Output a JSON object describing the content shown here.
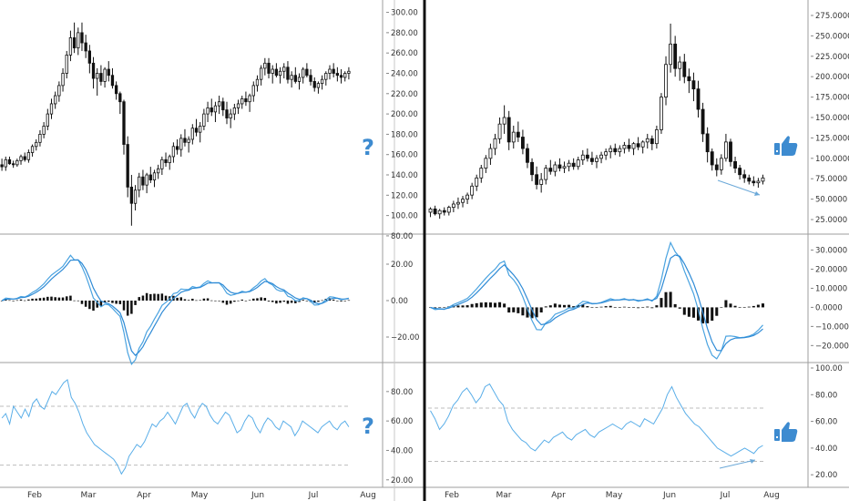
{
  "chart_data": [
    {
      "type": "candlestick",
      "panel": "left-price",
      "ylim": [
        88,
        305
      ],
      "yticks": [
        "300.00",
        "280.00",
        "260.00",
        "240.00",
        "220.00",
        "200.00",
        "180.00",
        "160.00",
        "140.00",
        "120.00",
        "100.00",
        "80.00"
      ],
      "annotation": "?",
      "candles": [
        [
          150,
          156,
          144,
          148
        ],
        [
          148,
          158,
          144,
          155
        ],
        [
          155,
          158,
          150,
          151
        ],
        [
          151,
          154,
          147,
          150
        ],
        [
          150,
          156,
          148,
          154
        ],
        [
          154,
          160,
          150,
          158
        ],
        [
          158,
          162,
          153,
          155
        ],
        [
          155,
          165,
          152,
          162
        ],
        [
          162,
          170,
          158,
          168
        ],
        [
          168,
          175,
          164,
          172
        ],
        [
          172,
          184,
          168,
          180
        ],
        [
          180,
          192,
          176,
          188
        ],
        [
          188,
          205,
          184,
          200
        ],
        [
          200,
          215,
          195,
          210
        ],
        [
          210,
          222,
          205,
          218
        ],
        [
          218,
          232,
          212,
          228
        ],
        [
          228,
          245,
          222,
          240
        ],
        [
          240,
          262,
          235,
          258
        ],
        [
          258,
          282,
          252,
          275
        ],
        [
          275,
          290,
          260,
          265
        ],
        [
          265,
          285,
          258,
          280
        ],
        [
          280,
          290,
          262,
          270
        ],
        [
          270,
          278,
          255,
          262
        ],
        [
          262,
          268,
          240,
          250
        ],
        [
          250,
          256,
          225,
          235
        ],
        [
          235,
          245,
          218,
          240
        ],
        [
          240,
          248,
          228,
          232
        ],
        [
          232,
          246,
          226,
          244
        ],
        [
          244,
          252,
          232,
          238
        ],
        [
          238,
          245,
          225,
          228
        ],
        [
          228,
          232,
          214,
          220
        ],
        [
          220,
          222,
          200,
          212
        ],
        [
          212,
          214,
          160,
          170
        ],
        [
          170,
          178,
          118,
          128
        ],
        [
          128,
          140,
          90,
          112
        ],
        [
          112,
          130,
          105,
          125
        ],
        [
          125,
          142,
          118,
          138
        ],
        [
          138,
          145,
          125,
          130
        ],
        [
          130,
          142,
          122,
          140
        ],
        [
          140,
          148,
          132,
          135
        ],
        [
          135,
          145,
          128,
          142
        ],
        [
          142,
          150,
          136,
          146
        ],
        [
          146,
          158,
          140,
          155
        ],
        [
          155,
          162,
          148,
          152
        ],
        [
          152,
          160,
          145,
          158
        ],
        [
          158,
          172,
          152,
          168
        ],
        [
          168,
          175,
          160,
          165
        ],
        [
          165,
          180,
          158,
          176
        ],
        [
          176,
          185,
          168,
          172
        ],
        [
          172,
          178,
          162,
          175
        ],
        [
          175,
          190,
          170,
          186
        ],
        [
          186,
          195,
          178,
          182
        ],
        [
          182,
          192,
          172,
          188
        ],
        [
          188,
          205,
          184,
          200
        ],
        [
          200,
          212,
          192,
          206
        ],
        [
          206,
          215,
          198,
          202
        ],
        [
          202,
          212,
          192,
          208
        ],
        [
          208,
          218,
          200,
          212
        ],
        [
          212,
          216,
          198,
          204
        ],
        [
          204,
          212,
          190,
          196
        ],
        [
          196,
          205,
          186,
          200
        ],
        [
          200,
          210,
          194,
          206
        ],
        [
          206,
          214,
          200,
          210
        ],
        [
          210,
          218,
          205,
          215
        ],
        [
          215,
          222,
          208,
          212
        ],
        [
          212,
          220,
          202,
          218
        ],
        [
          218,
          232,
          212,
          228
        ],
        [
          228,
          238,
          222,
          234
        ],
        [
          234,
          248,
          228,
          245
        ],
        [
          245,
          255,
          238,
          250
        ],
        [
          250,
          255,
          235,
          240
        ],
        [
          240,
          248,
          230,
          244
        ],
        [
          244,
          250,
          236,
          238
        ],
        [
          238,
          246,
          230,
          242
        ],
        [
          242,
          250,
          235,
          246
        ],
        [
          246,
          252,
          230,
          234
        ],
        [
          234,
          242,
          226,
          238
        ],
        [
          238,
          246,
          230,
          232
        ],
        [
          232,
          240,
          224,
          236
        ],
        [
          236,
          246,
          230,
          244
        ],
        [
          244,
          250,
          236,
          238
        ],
        [
          238,
          244,
          228,
          232
        ],
        [
          232,
          236,
          222,
          226
        ],
        [
          226,
          232,
          220,
          230
        ],
        [
          230,
          238,
          224,
          234
        ],
        [
          234,
          242,
          228,
          240
        ],
        [
          240,
          248,
          234,
          244
        ],
        [
          244,
          250,
          236,
          240
        ],
        [
          240,
          246,
          232,
          238
        ],
        [
          238,
          244,
          230,
          236
        ],
        [
          236,
          242,
          232,
          240
        ],
        [
          240,
          246,
          234,
          242
        ]
      ]
    },
    {
      "type": "candlestick",
      "panel": "right-price",
      "ylim": [
        15,
        285
      ],
      "yticks": [
        "275.0000",
        "250.0000",
        "225.0000",
        "200.0000",
        "175.0000",
        "150.0000",
        "125.0000",
        "100.0000",
        "75.0000",
        "50.0000",
        "25.0000"
      ],
      "annotation": "thumbs-up",
      "candles": [
        [
          34,
          40,
          28,
          38
        ],
        [
          38,
          42,
          30,
          32
        ],
        [
          32,
          38,
          26,
          36
        ],
        [
          36,
          40,
          30,
          34
        ],
        [
          34,
          42,
          30,
          40
        ],
        [
          40,
          48,
          34,
          44
        ],
        [
          44,
          52,
          38,
          46
        ],
        [
          46,
          54,
          40,
          50
        ],
        [
          50,
          58,
          44,
          55
        ],
        [
          55,
          70,
          50,
          66
        ],
        [
          66,
          80,
          60,
          76
        ],
        [
          76,
          92,
          70,
          88
        ],
        [
          88,
          104,
          82,
          100
        ],
        [
          100,
          118,
          92,
          112
        ],
        [
          112,
          130,
          104,
          124
        ],
        [
          124,
          150,
          118,
          142
        ],
        [
          142,
          165,
          130,
          150
        ],
        [
          150,
          158,
          110,
          120
        ],
        [
          120,
          140,
          112,
          132
        ],
        [
          132,
          145,
          120,
          126
        ],
        [
          126,
          135,
          105,
          112
        ],
        [
          112,
          118,
          88,
          95
        ],
        [
          95,
          100,
          72,
          80
        ],
        [
          80,
          90,
          62,
          68
        ],
        [
          68,
          82,
          58,
          74
        ],
        [
          74,
          92,
          68,
          88
        ],
        [
          88,
          98,
          80,
          84
        ],
        [
          84,
          96,
          78,
          92
        ],
        [
          92,
          100,
          84,
          88
        ],
        [
          88,
          96,
          82,
          90
        ],
        [
          90,
          98,
          84,
          94
        ],
        [
          94,
          100,
          86,
          90
        ],
        [
          90,
          102,
          86,
          98
        ],
        [
          98,
          110,
          92,
          104
        ],
        [
          104,
          112,
          96,
          100
        ],
        [
          100,
          108,
          92,
          96
        ],
        [
          96,
          104,
          88,
          100
        ],
        [
          100,
          108,
          94,
          104
        ],
        [
          104,
          112,
          98,
          108
        ],
        [
          108,
          116,
          100,
          112
        ],
        [
          112,
          118,
          104,
          108
        ],
        [
          108,
          116,
          102,
          112
        ],
        [
          112,
          120,
          106,
          116
        ],
        [
          116,
          124,
          108,
          112
        ],
        [
          112,
          120,
          104,
          118
        ],
        [
          118,
          126,
          110,
          114
        ],
        [
          114,
          122,
          106,
          120
        ],
        [
          120,
          130,
          112,
          124
        ],
        [
          124,
          128,
          110,
          118
        ],
        [
          118,
          140,
          112,
          135
        ],
        [
          135,
          180,
          130,
          175
        ],
        [
          175,
          225,
          165,
          215
        ],
        [
          215,
          265,
          205,
          240
        ],
        [
          240,
          250,
          200,
          210
        ],
        [
          210,
          225,
          195,
          218
        ],
        [
          218,
          228,
          192,
          200
        ],
        [
          200,
          210,
          180,
          195
        ],
        [
          195,
          205,
          170,
          185
        ],
        [
          185,
          195,
          150,
          160
        ],
        [
          160,
          168,
          120,
          130
        ],
        [
          130,
          138,
          95,
          108
        ],
        [
          108,
          112,
          85,
          92
        ],
        [
          92,
          100,
          78,
          86
        ],
        [
          86,
          105,
          80,
          100
        ],
        [
          100,
          130,
          96,
          120
        ],
        [
          120,
          124,
          90,
          96
        ],
        [
          96,
          102,
          82,
          88
        ],
        [
          88,
          92,
          74,
          80
        ],
        [
          80,
          86,
          70,
          76
        ],
        [
          76,
          80,
          68,
          72
        ],
        [
          72,
          78,
          66,
          70
        ],
        [
          70,
          76,
          64,
          72
        ],
        [
          72,
          80,
          68,
          76
        ]
      ]
    },
    {
      "type": "line+bar",
      "panel": "left-macd",
      "ylim": [
        -32,
        34
      ],
      "yticks": [
        "20.00",
        "0.00",
        "−20.00"
      ]
    },
    {
      "type": "line+bar",
      "panel": "right-macd",
      "ylim": [
        -27,
        36
      ],
      "yticks": [
        "30.0000",
        "20.0000",
        "10.0000",
        "0.0000",
        "−10.0000",
        "−20.0000"
      ]
    },
    {
      "type": "line",
      "panel": "left-rsi",
      "ylim": [
        18,
        96
      ],
      "yticks": [
        "80.00",
        "60.00",
        "40.00",
        "20.00"
      ],
      "annotation": "?",
      "levels": [
        70,
        30
      ],
      "values": [
        62,
        65,
        58,
        70,
        66,
        62,
        68,
        63,
        72,
        75,
        70,
        68,
        74,
        80,
        78,
        82,
        86,
        88,
        76,
        72,
        66,
        58,
        52,
        48,
        44,
        42,
        40,
        38,
        36,
        34,
        30,
        24,
        28,
        36,
        40,
        44,
        42,
        46,
        52,
        58,
        56,
        60,
        62,
        66,
        62,
        58,
        64,
        70,
        72,
        66,
        62,
        68,
        72,
        70,
        64,
        60,
        58,
        62,
        66,
        64,
        58,
        52,
        54,
        60,
        64,
        62,
        56,
        52,
        58,
        62,
        60,
        56,
        54,
        60,
        58,
        56,
        50,
        54,
        60,
        58,
        56,
        54,
        52,
        56,
        58,
        60,
        56,
        54,
        58,
        60,
        56
      ]
    },
    {
      "type": "line",
      "panel": "right-rsi",
      "ylim": [
        14,
        100
      ],
      "yticks": [
        "100.00",
        "80.00",
        "60.00",
        "40.00",
        "20.00"
      ],
      "annotation": "thumbs-up",
      "levels": [
        70,
        30
      ],
      "values": [
        68,
        62,
        54,
        58,
        64,
        72,
        76,
        82,
        85,
        80,
        74,
        78,
        86,
        88,
        82,
        76,
        72,
        60,
        54,
        50,
        46,
        44,
        40,
        38,
        42,
        46,
        44,
        48,
        50,
        52,
        48,
        46,
        50,
        52,
        54,
        50,
        48,
        52,
        54,
        56,
        58,
        56,
        54,
        58,
        60,
        58,
        56,
        62,
        60,
        58,
        64,
        70,
        80,
        86,
        78,
        72,
        66,
        62,
        58,
        56,
        52,
        48,
        44,
        40,
        38,
        36,
        34,
        36,
        38,
        40,
        38,
        36,
        40,
        42
      ]
    }
  ],
  "x_axis": {
    "left_months": [
      "Feb",
      "Mar",
      "Apr",
      "May",
      "Jun",
      "Jul",
      "Aug"
    ],
    "right_months": [
      "Feb",
      "Mar",
      "Apr",
      "May",
      "Jun",
      "Jul",
      "Aug"
    ]
  },
  "colors": {
    "candle": "#111111",
    "macd_line": "#4aa3e0",
    "signal_line": "#2f8bd6",
    "histogram": "#111111",
    "rsi_line": "#5aaee8",
    "level_line": "#bdbdbd",
    "icon": "#3d8bd0",
    "divider": "#111111",
    "grid": "#d8d8d8",
    "axis_text": "#333333"
  },
  "icons": {
    "left": "question-mark-icon",
    "right": "thumbs-up-icon"
  }
}
